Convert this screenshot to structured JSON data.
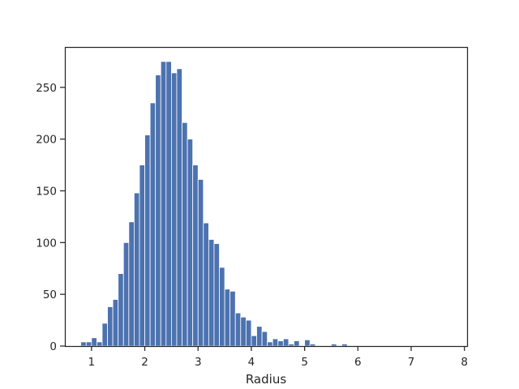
{
  "chart_data": {
    "type": "bar",
    "title": "",
    "xlabel": "Radius",
    "ylabel": "",
    "xlim": [
      0.5,
      8.05
    ],
    "ylim": [
      0,
      289
    ],
    "xticks": [
      1,
      2,
      3,
      4,
      5,
      6,
      7,
      8
    ],
    "yticks": [
      0,
      50,
      100,
      150,
      200,
      250
    ],
    "grid": false,
    "legend": "none",
    "bar_color": "#4c72b0",
    "bin_width": 0.1,
    "bins": [
      {
        "x": 0.8,
        "y": 4
      },
      {
        "x": 0.9,
        "y": 4
      },
      {
        "x": 1.0,
        "y": 8
      },
      {
        "x": 1.1,
        "y": 4
      },
      {
        "x": 1.2,
        "y": 22
      },
      {
        "x": 1.3,
        "y": 38
      },
      {
        "x": 1.4,
        "y": 45
      },
      {
        "x": 1.5,
        "y": 70
      },
      {
        "x": 1.6,
        "y": 100
      },
      {
        "x": 1.7,
        "y": 120
      },
      {
        "x": 1.8,
        "y": 148
      },
      {
        "x": 1.9,
        "y": 175
      },
      {
        "x": 2.0,
        "y": 204
      },
      {
        "x": 2.1,
        "y": 235
      },
      {
        "x": 2.2,
        "y": 262
      },
      {
        "x": 2.3,
        "y": 275
      },
      {
        "x": 2.4,
        "y": 275
      },
      {
        "x": 2.5,
        "y": 264
      },
      {
        "x": 2.6,
        "y": 268
      },
      {
        "x": 2.7,
        "y": 216
      },
      {
        "x": 2.8,
        "y": 200
      },
      {
        "x": 2.9,
        "y": 175
      },
      {
        "x": 3.0,
        "y": 161
      },
      {
        "x": 3.1,
        "y": 119
      },
      {
        "x": 3.2,
        "y": 103
      },
      {
        "x": 3.3,
        "y": 99
      },
      {
        "x": 3.4,
        "y": 76
      },
      {
        "x": 3.5,
        "y": 55
      },
      {
        "x": 3.6,
        "y": 53
      },
      {
        "x": 3.7,
        "y": 32
      },
      {
        "x": 3.8,
        "y": 28
      },
      {
        "x": 3.9,
        "y": 25
      },
      {
        "x": 4.0,
        "y": 10
      },
      {
        "x": 4.1,
        "y": 19
      },
      {
        "x": 4.2,
        "y": 14
      },
      {
        "x": 4.3,
        "y": 4
      },
      {
        "x": 4.4,
        "y": 7
      },
      {
        "x": 4.5,
        "y": 5
      },
      {
        "x": 4.6,
        "y": 7
      },
      {
        "x": 4.7,
        "y": 2
      },
      {
        "x": 4.8,
        "y": 5
      },
      {
        "x": 5.0,
        "y": 6
      },
      {
        "x": 5.1,
        "y": 2
      },
      {
        "x": 5.5,
        "y": 2
      },
      {
        "x": 5.7,
        "y": 2
      }
    ]
  }
}
